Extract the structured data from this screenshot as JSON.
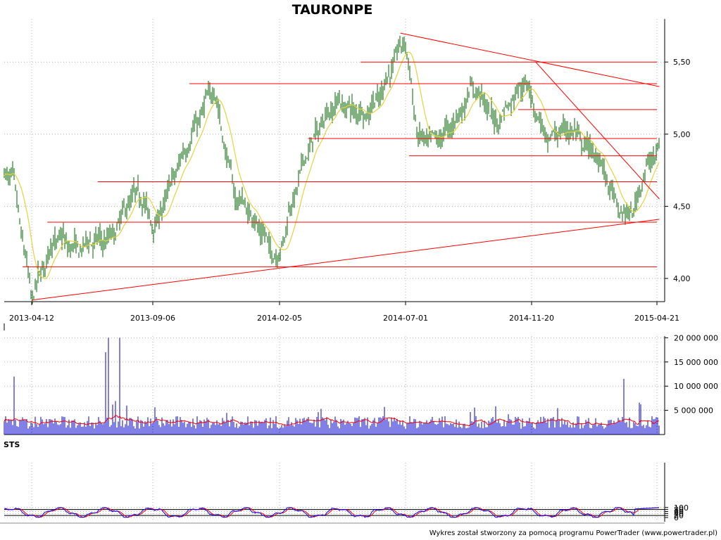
{
  "chart_data": [
    {
      "type": "candlestick",
      "title": "TAURONPE",
      "x_dates": [
        "2013-04-12",
        "2013-09-06",
        "2014-02-05",
        "2014-07-01",
        "2014-11-20",
        "2015-04-21"
      ],
      "y_ticks": [
        "4,00",
        "4,50",
        "5,00",
        "5,50"
      ],
      "ylim": [
        3.84,
        5.72
      ],
      "grid": true,
      "price_anchors": [
        {
          "date": "2013-03-20",
          "value": 4.7
        },
        {
          "date": "2013-04-12",
          "value": 3.9
        },
        {
          "date": "2013-05-15",
          "value": 4.3
        },
        {
          "date": "2013-06-10",
          "value": 4.2
        },
        {
          "date": "2013-07-20",
          "value": 4.32
        },
        {
          "date": "2013-08-20",
          "value": 4.62
        },
        {
          "date": "2013-09-10",
          "value": 4.35
        },
        {
          "date": "2013-10-10",
          "value": 4.85
        },
        {
          "date": "2013-11-05",
          "value": 5.15
        },
        {
          "date": "2013-11-18",
          "value": 5.32
        },
        {
          "date": "2013-12-15",
          "value": 4.55
        },
        {
          "date": "2014-01-20",
          "value": 4.3
        },
        {
          "date": "2014-02-03",
          "value": 4.1
        },
        {
          "date": "2014-03-05",
          "value": 4.85
        },
        {
          "date": "2014-04-15",
          "value": 5.25
        },
        {
          "date": "2014-05-15",
          "value": 5.1
        },
        {
          "date": "2014-06-10",
          "value": 5.4
        },
        {
          "date": "2014-06-30",
          "value": 5.65
        },
        {
          "date": "2014-07-15",
          "value": 5.0
        },
        {
          "date": "2014-08-10",
          "value": 4.95
        },
        {
          "date": "2014-09-15",
          "value": 5.32
        },
        {
          "date": "2014-10-10",
          "value": 5.1
        },
        {
          "date": "2014-11-15",
          "value": 5.35
        },
        {
          "date": "2014-12-10",
          "value": 4.95
        },
        {
          "date": "2015-01-10",
          "value": 5.05
        },
        {
          "date": "2015-02-15",
          "value": 4.75
        },
        {
          "date": "2015-03-10",
          "value": 4.45
        },
        {
          "date": "2015-03-25",
          "value": 4.45
        },
        {
          "date": "2015-04-05",
          "value": 4.72
        },
        {
          "date": "2015-04-21",
          "value": 4.92
        }
      ],
      "horizontal_levels": [
        {
          "value": 5.5,
          "from": "2014-05-10",
          "to": "2015-04-21"
        },
        {
          "value": 5.35,
          "from": "2013-10-20",
          "to": "2015-04-21"
        },
        {
          "value": 5.17,
          "from": "2014-11-05",
          "to": "2015-04-21"
        },
        {
          "value": 4.97,
          "from": "2014-03-10",
          "to": "2015-04-21"
        },
        {
          "value": 4.85,
          "from": "2014-07-05",
          "to": "2015-04-21"
        },
        {
          "value": 4.67,
          "from": "2013-07-01",
          "to": "2015-04-21"
        },
        {
          "value": 4.39,
          "from": "2013-05-01",
          "to": "2015-04-21"
        },
        {
          "value": 4.08,
          "from": "2013-04-01",
          "to": "2015-04-21"
        }
      ],
      "trend_lines": [
        {
          "x1": "2013-04-12",
          "y1": 3.85,
          "x2": "2015-04-24",
          "y2": 4.41
        },
        {
          "x1": "2014-06-25",
          "y1": 5.7,
          "x2": "2015-04-24",
          "y2": 5.33
        },
        {
          "x1": "2014-11-25",
          "y1": 5.5,
          "x2": "2015-04-24",
          "y2": 4.55
        }
      ]
    },
    {
      "type": "bar",
      "name": "volume",
      "y_ticks": [
        "5 000 000",
        "10 000 000",
        "15 000 000",
        "20 000 000"
      ],
      "ylim": [
        0,
        20000000
      ],
      "spikes": [
        {
          "date": "2013-03-22",
          "value": 12000000
        },
        {
          "date": "2013-07-10",
          "value": 17000000
        },
        {
          "date": "2013-07-15",
          "value": 20000000
        },
        {
          "date": "2013-07-20",
          "value": 6200000
        },
        {
          "date": "2013-07-28",
          "value": 20000000
        },
        {
          "date": "2013-08-05",
          "value": 6000000
        },
        {
          "date": "2015-03-12",
          "value": 11500000
        }
      ]
    },
    {
      "type": "line",
      "name": "STS",
      "label": "STS",
      "y_ticks": [
        "0",
        "20",
        "40",
        "60",
        "80",
        "100"
      ],
      "ylim": [
        0,
        100
      ],
      "reference_lines": [
        20,
        80
      ]
    }
  ],
  "footer": "Wykres został stworzony za pomocą programu PowerTrader (www.powertrader.pl)",
  "colors": {
    "candle": "#006400",
    "moving_average": "#e6d23c",
    "level_line": "#ff0000",
    "volume": "#0000cc",
    "volume_average": "#ff0000",
    "sts_k": "#0000ff",
    "sts_d": "#ff0000"
  }
}
